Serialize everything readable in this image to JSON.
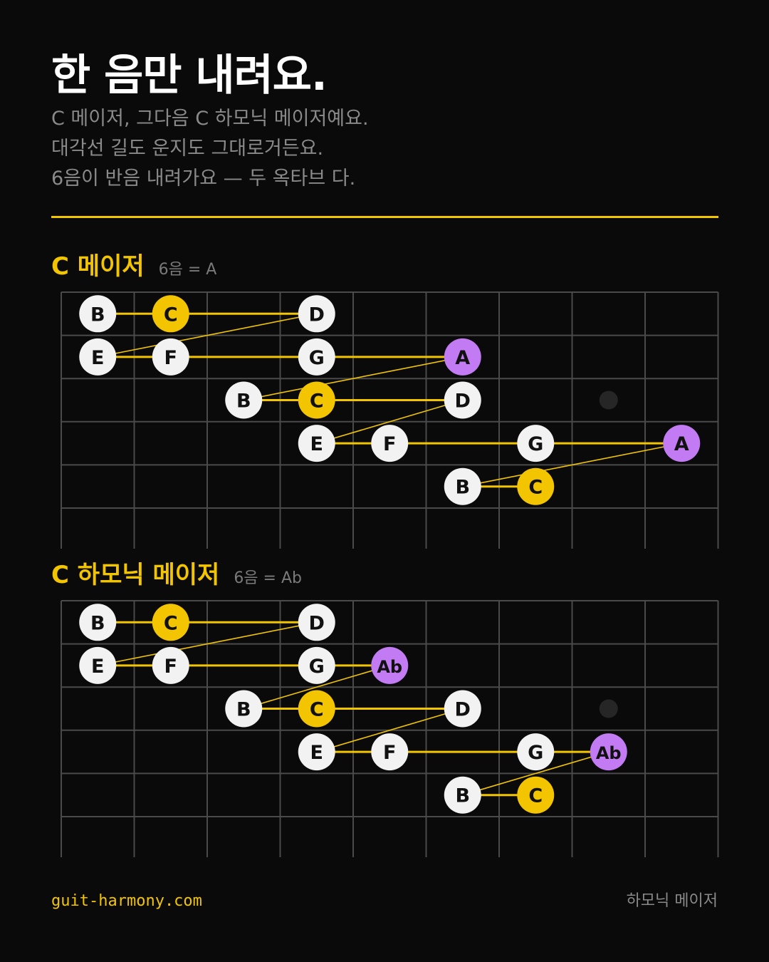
{
  "title": "한 음만 내려요.",
  "subtitle_lines": [
    "C 메이저, 그다음 C 하모닉 메이저예요.",
    "대각선 길도 운지도 그대로거든요.",
    "6음이 반음 내려가요 — 두 옥타브 다."
  ],
  "colors": {
    "background": "#0a0a0a",
    "accent": "#f2c500",
    "changed_note": "#c27bf2",
    "regular_note": "#f2f2f2",
    "fret_line": "#4a4a4a"
  },
  "chart_data": [
    {
      "type": "diagram",
      "title": "C 메이저",
      "note": "6음 = A",
      "frets": [
        2,
        3,
        4,
        5,
        6,
        7,
        8,
        9,
        10
      ],
      "strings": 6,
      "inlay_fret": 9,
      "notes": [
        {
          "label": "B",
          "string": 1,
          "fret": 2,
          "kind": "normal"
        },
        {
          "label": "C",
          "string": 1,
          "fret": 3,
          "kind": "root"
        },
        {
          "label": "D",
          "string": 1,
          "fret": 5,
          "kind": "normal"
        },
        {
          "label": "E",
          "string": 2,
          "fret": 2,
          "kind": "normal"
        },
        {
          "label": "F",
          "string": 2,
          "fret": 3,
          "kind": "normal"
        },
        {
          "label": "G",
          "string": 2,
          "fret": 5,
          "kind": "normal"
        },
        {
          "label": "A",
          "string": 2,
          "fret": 7,
          "kind": "changed"
        },
        {
          "label": "B",
          "string": 3,
          "fret": 4,
          "kind": "normal"
        },
        {
          "label": "C",
          "string": 3,
          "fret": 5,
          "kind": "root"
        },
        {
          "label": "D",
          "string": 3,
          "fret": 7,
          "kind": "normal"
        },
        {
          "label": "E",
          "string": 4,
          "fret": 5,
          "kind": "normal"
        },
        {
          "label": "F",
          "string": 4,
          "fret": 6,
          "kind": "normal"
        },
        {
          "label": "G",
          "string": 4,
          "fret": 8,
          "kind": "normal"
        },
        {
          "label": "A",
          "string": 4,
          "fret": 10,
          "kind": "changed"
        },
        {
          "label": "B",
          "string": 5,
          "fret": 7,
          "kind": "normal"
        },
        {
          "label": "C",
          "string": 5,
          "fret": 8,
          "kind": "root"
        }
      ]
    },
    {
      "type": "diagram",
      "title": "C 하모닉 메이저",
      "note": "6음 = Ab",
      "frets": [
        2,
        3,
        4,
        5,
        6,
        7,
        8,
        9,
        10
      ],
      "strings": 6,
      "inlay_fret": 9,
      "notes": [
        {
          "label": "B",
          "string": 1,
          "fret": 2,
          "kind": "normal"
        },
        {
          "label": "C",
          "string": 1,
          "fret": 3,
          "kind": "root"
        },
        {
          "label": "D",
          "string": 1,
          "fret": 5,
          "kind": "normal"
        },
        {
          "label": "E",
          "string": 2,
          "fret": 2,
          "kind": "normal"
        },
        {
          "label": "F",
          "string": 2,
          "fret": 3,
          "kind": "normal"
        },
        {
          "label": "G",
          "string": 2,
          "fret": 5,
          "kind": "normal"
        },
        {
          "label": "Ab",
          "string": 2,
          "fret": 6,
          "kind": "changed"
        },
        {
          "label": "B",
          "string": 3,
          "fret": 4,
          "kind": "normal"
        },
        {
          "label": "C",
          "string": 3,
          "fret": 5,
          "kind": "root"
        },
        {
          "label": "D",
          "string": 3,
          "fret": 7,
          "kind": "normal"
        },
        {
          "label": "E",
          "string": 4,
          "fret": 5,
          "kind": "normal"
        },
        {
          "label": "F",
          "string": 4,
          "fret": 6,
          "kind": "normal"
        },
        {
          "label": "G",
          "string": 4,
          "fret": 8,
          "kind": "normal"
        },
        {
          "label": "Ab",
          "string": 4,
          "fret": 9,
          "kind": "changed"
        },
        {
          "label": "B",
          "string": 5,
          "fret": 7,
          "kind": "normal"
        },
        {
          "label": "C",
          "string": 5,
          "fret": 8,
          "kind": "root"
        }
      ]
    }
  ],
  "footer": {
    "site": "guit-harmony.com",
    "tag": "하모닉 메이저"
  }
}
